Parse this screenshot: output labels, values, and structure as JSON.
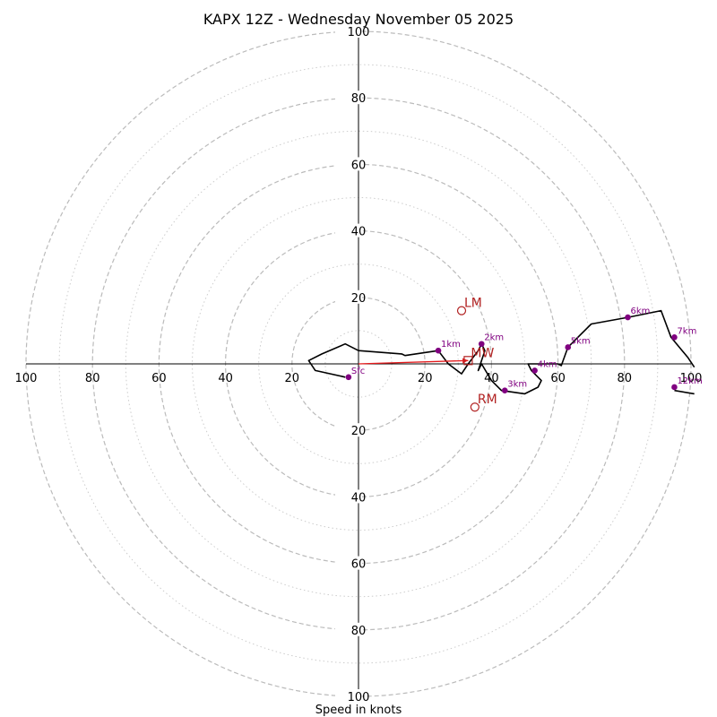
{
  "chart_data": {
    "type": "hodograph",
    "title": "KAPX 12Z - Wednesday November 05 2025",
    "xlabel": "Speed in knots",
    "max_speed": 100,
    "ring_major": [
      20,
      40,
      60,
      80,
      100
    ],
    "ring_minor": [
      10,
      30,
      50,
      70,
      90
    ],
    "tick_labels": [
      "100",
      "80",
      "60",
      "40",
      "20",
      "20",
      "40",
      "60",
      "80",
      "100",
      "100",
      "80",
      "60",
      "40",
      "20",
      "20",
      "40",
      "60",
      "80",
      "100"
    ],
    "hodograph_line": [
      [
        -4,
        -4
      ],
      [
        -13,
        -2
      ],
      [
        -15,
        1
      ],
      [
        -11,
        3
      ],
      [
        -4,
        6
      ],
      [
        0,
        4
      ],
      [
        13,
        3
      ],
      [
        14,
        2.5
      ],
      [
        24,
        4
      ],
      [
        27,
        0
      ],
      [
        31,
        -3
      ],
      [
        33,
        0
      ],
      [
        36,
        4
      ],
      [
        37,
        6
      ],
      [
        38,
        4
      ],
      [
        36,
        -2
      ],
      [
        37,
        0
      ],
      [
        40,
        -5
      ],
      [
        43,
        -8
      ],
      [
        50,
        -9
      ],
      [
        54,
        -7
      ],
      [
        55,
        -5
      ],
      [
        52,
        -2
      ],
      [
        51,
        0
      ],
      [
        57,
        0
      ],
      [
        60,
        0
      ],
      [
        61,
        -0.5
      ],
      [
        63,
        5
      ],
      [
        70,
        12
      ],
      [
        81,
        14
      ],
      [
        91,
        16
      ],
      [
        94,
        8
      ],
      [
        99,
        2
      ],
      [
        101,
        -1
      ]
    ],
    "hodograph_line_2": [
      [
        95,
        -8
      ],
      [
        101,
        -9
      ]
    ],
    "height_points": [
      {
        "label": "Sfc",
        "x": -3,
        "y": -4
      },
      {
        "label": "1km",
        "x": 24,
        "y": 4
      },
      {
        "label": "2km",
        "x": 37,
        "y": 6
      },
      {
        "label": "3km",
        "x": 44,
        "y": -8
      },
      {
        "label": "4km",
        "x": 53,
        "y": -2
      },
      {
        "label": "5km",
        "x": 63,
        "y": 5
      },
      {
        "label": "6km",
        "x": 81,
        "y": 14
      },
      {
        "label": "7km",
        "x": 95,
        "y": 8
      },
      {
        "label": "12km",
        "x": 95,
        "y": -7
      }
    ],
    "storm_motions": [
      {
        "label": "LM",
        "x": 31,
        "y": 16,
        "marker": "circle"
      },
      {
        "label": "MW",
        "x": 33,
        "y": 1,
        "marker": "square"
      },
      {
        "label": "RM",
        "x": 35,
        "y": -13,
        "marker": "circle"
      }
    ],
    "shear_vector": {
      "from": [
        0,
        0
      ],
      "to": [
        33,
        1
      ]
    },
    "colors": {
      "line": "#000000",
      "points": "#800080",
      "storm": "#b22222",
      "shear": "#e41a1c",
      "grid": "#bbbbbb",
      "grid_minor": "#cccccc"
    }
  }
}
